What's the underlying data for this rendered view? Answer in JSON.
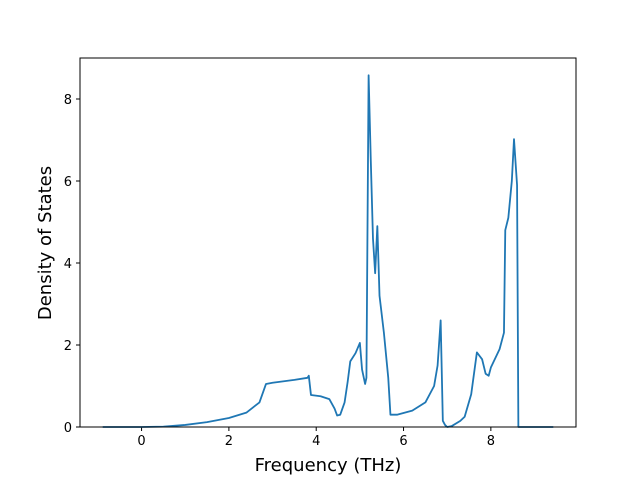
{
  "chart_data": {
    "type": "line",
    "xlabel": "Frequency (THz)",
    "ylabel": "Density of States",
    "x": [
      -0.89,
      0,
      0.5,
      1,
      1.5,
      2,
      2.4,
      2.7,
      2.85,
      3.0,
      3.5,
      3.8,
      3.83,
      3.88,
      4.1,
      4.3,
      4.42,
      4.48,
      4.55,
      4.65,
      4.72,
      4.78,
      4.9,
      5.0,
      5.05,
      5.12,
      5.15,
      5.2,
      5.25,
      5.3,
      5.35,
      5.4,
      5.45,
      5.55,
      5.65,
      5.7,
      5.85,
      6.2,
      6.5,
      6.7,
      6.78,
      6.85,
      6.9,
      6.95,
      7.0,
      7.1,
      7.3,
      7.4,
      7.55,
      7.68,
      7.8,
      7.88,
      7.95,
      8.0,
      8.2,
      8.3,
      8.33,
      8.4,
      8.48,
      8.53,
      8.6,
      8.63,
      9.43
    ],
    "values": [
      0,
      0,
      0.01,
      0.05,
      0.12,
      0.22,
      0.35,
      0.6,
      1.05,
      1.08,
      1.15,
      1.2,
      1.25,
      0.78,
      0.75,
      0.68,
      0.45,
      0.28,
      0.3,
      0.6,
      1.1,
      1.6,
      1.8,
      2.05,
      1.4,
      1.05,
      1.2,
      8.58,
      6.5,
      4.6,
      3.75,
      4.9,
      3.2,
      2.3,
      1.2,
      0.3,
      0.3,
      0.4,
      0.6,
      1.0,
      1.5,
      2.6,
      0.15,
      0.05,
      0.0,
      0.02,
      0.15,
      0.25,
      0.8,
      1.82,
      1.65,
      1.3,
      1.25,
      1.45,
      1.9,
      2.3,
      4.8,
      5.1,
      6.0,
      7.02,
      5.9,
      0,
      0
    ],
    "color": "#1f77b4",
    "xlim": [
      -1.41,
      9.95
    ],
    "xticks": [
      0,
      2,
      4,
      6,
      8
    ],
    "ylim": [
      0,
      9.0
    ],
    "yticks": [
      0,
      2,
      4,
      6,
      8
    ]
  }
}
